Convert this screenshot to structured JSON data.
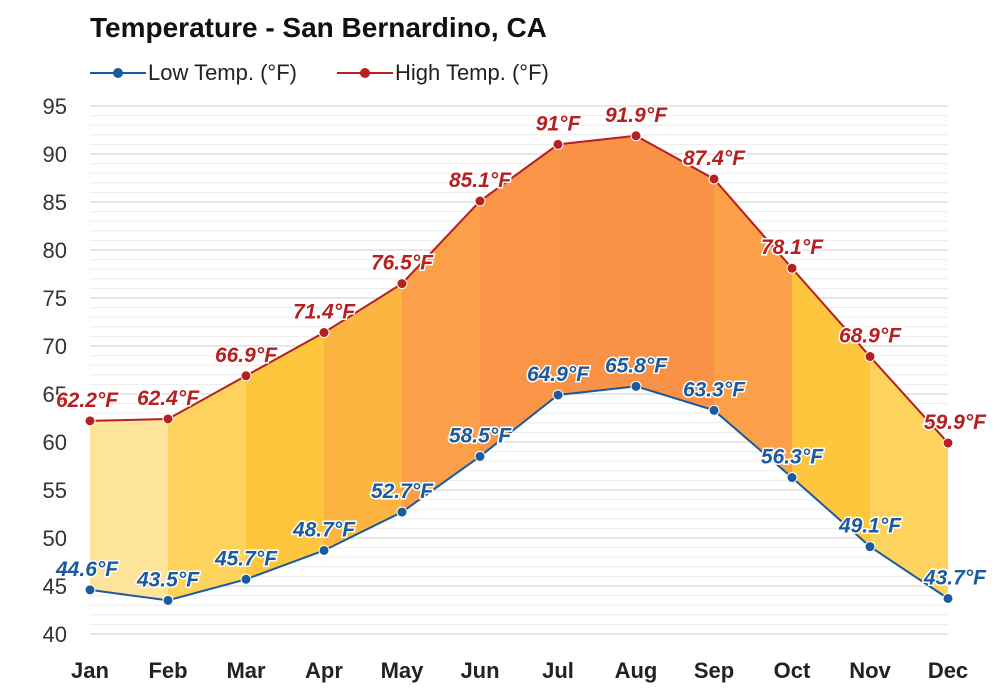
{
  "chart_data": {
    "type": "area",
    "title": "Temperature - San Bernardino, CA",
    "categories": [
      "Jan",
      "Feb",
      "Mar",
      "Apr",
      "May",
      "Jun",
      "Jul",
      "Aug",
      "Sep",
      "Oct",
      "Nov",
      "Dec"
    ],
    "series": [
      {
        "name": "Low Temp. (°F)",
        "color": "#1a5a9e",
        "values": [
          44.6,
          43.5,
          45.7,
          48.7,
          52.7,
          58.5,
          64.9,
          65.8,
          63.3,
          56.3,
          49.1,
          43.7
        ],
        "labels": [
          "44.6°F",
          "43.5°F",
          "45.7°F",
          "48.7°F",
          "52.7°F",
          "58.5°F",
          "64.9°F",
          "65.8°F",
          "63.3°F",
          "56.3°F",
          "49.1°F",
          "43.7°F"
        ]
      },
      {
        "name": "High Temp. (°F)",
        "color": "#b52020",
        "values": [
          62.2,
          62.4,
          66.9,
          71.4,
          76.5,
          85.1,
          91,
          91.9,
          87.4,
          78.1,
          68.9,
          59.9
        ],
        "labels": [
          "62.2°F",
          "62.4°F",
          "66.9°F",
          "71.4°F",
          "76.5°F",
          "85.1°F",
          "91°F",
          "91.9°F",
          "87.4°F",
          "78.1°F",
          "68.9°F",
          "59.9°F"
        ]
      }
    ],
    "ylim": [
      40,
      95
    ],
    "yticks": [
      "40",
      "45",
      "50",
      "55",
      "60",
      "65",
      "70",
      "75",
      "80",
      "85",
      "90",
      "95"
    ],
    "grid": true,
    "legend": "top-left",
    "fill_colors": [
      "#fde49a",
      "#fdd35e",
      "#fdc63c",
      "#fcb540",
      "#fba048",
      "#fa9548",
      "#f99246",
      "#f99246",
      "#fba048",
      "#fdc63c",
      "#fdd35e",
      "#fde49a"
    ]
  }
}
